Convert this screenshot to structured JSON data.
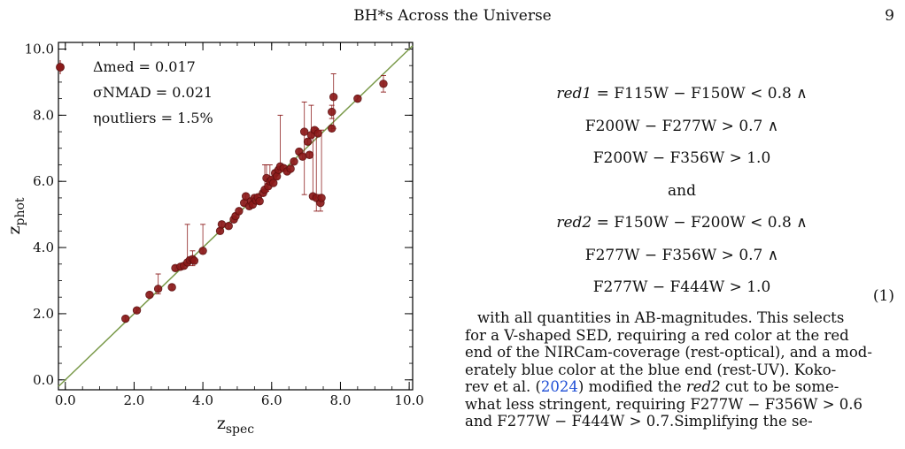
{
  "header": {
    "title": "BH*s Across the Universe",
    "page_number": "9"
  },
  "figure": {
    "legend": {
      "delta": "Δmed = 0.017",
      "sigma": "σNMAD = 0.021",
      "eta": "ηoutliers = 1.5%"
    },
    "colors": {
      "points": "#8b1a1a",
      "line": "#7a9a4a"
    }
  },
  "chart_data": {
    "type": "scatter",
    "xlabel": "zspec",
    "ylabel": "zphot",
    "xlim": [
      -0.2,
      10.1
    ],
    "ylim": [
      -0.3,
      10.2
    ],
    "xticks": [
      "0.0",
      "2.0",
      "4.0",
      "6.0",
      "8.0",
      "10.0"
    ],
    "yticks": [
      "0.0",
      "2.0",
      "4.0",
      "6.0",
      "8.0",
      "10.0"
    ],
    "reference_line": "one-to-one",
    "points": [
      {
        "x": 1.75,
        "y": 1.85,
        "lo": 1.78,
        "hi": 1.92
      },
      {
        "x": 2.08,
        "y": 2.1,
        "lo": 2.03,
        "hi": 2.17
      },
      {
        "x": 2.45,
        "y": 2.57,
        "lo": 2.5,
        "hi": 2.64
      },
      {
        "x": 2.7,
        "y": 2.75,
        "lo": 2.6,
        "hi": 3.2
      },
      {
        "x": 3.1,
        "y": 2.8,
        "lo": 2.72,
        "hi": 2.88
      },
      {
        "x": 3.2,
        "y": 3.38,
        "lo": 3.3,
        "hi": 3.46
      },
      {
        "x": 3.35,
        "y": 3.42,
        "lo": 3.34,
        "hi": 3.5
      },
      {
        "x": 3.45,
        "y": 3.45,
        "lo": 3.37,
        "hi": 3.53
      },
      {
        "x": 3.55,
        "y": 3.55,
        "lo": 3.47,
        "hi": 4.7
      },
      {
        "x": 3.62,
        "y": 3.62,
        "lo": 3.54,
        "hi": 3.7
      },
      {
        "x": 3.7,
        "y": 3.65,
        "lo": 3.45,
        "hi": 3.9
      },
      {
        "x": 3.75,
        "y": 3.6,
        "lo": 3.52,
        "hi": 3.68
      },
      {
        "x": 4.0,
        "y": 3.9,
        "lo": 3.82,
        "hi": 4.7
      },
      {
        "x": 4.5,
        "y": 4.5,
        "lo": 4.42,
        "hi": 4.58
      },
      {
        "x": 4.55,
        "y": 4.7,
        "lo": 4.62,
        "hi": 4.78
      },
      {
        "x": 4.75,
        "y": 4.65,
        "lo": 4.57,
        "hi": 4.73
      },
      {
        "x": 4.9,
        "y": 4.85,
        "lo": 4.77,
        "hi": 4.93
      },
      {
        "x": 4.95,
        "y": 4.95,
        "lo": 4.87,
        "hi": 5.03
      },
      {
        "x": 5.05,
        "y": 5.1,
        "lo": 5.02,
        "hi": 5.18
      },
      {
        "x": 5.2,
        "y": 5.35,
        "lo": 5.27,
        "hi": 5.43
      },
      {
        "x": 5.25,
        "y": 5.55,
        "lo": 5.47,
        "hi": 5.63
      },
      {
        "x": 5.35,
        "y": 5.25,
        "lo": 5.17,
        "hi": 5.33
      },
      {
        "x": 5.4,
        "y": 5.4,
        "lo": 5.32,
        "hi": 5.48
      },
      {
        "x": 5.45,
        "y": 5.3,
        "lo": 5.22,
        "hi": 5.38
      },
      {
        "x": 5.5,
        "y": 5.5,
        "lo": 5.42,
        "hi": 5.58
      },
      {
        "x": 5.55,
        "y": 5.42,
        "lo": 5.34,
        "hi": 5.5
      },
      {
        "x": 5.6,
        "y": 5.52,
        "lo": 5.44,
        "hi": 5.6
      },
      {
        "x": 5.65,
        "y": 5.4,
        "lo": 5.32,
        "hi": 5.48
      },
      {
        "x": 5.75,
        "y": 5.65,
        "lo": 5.57,
        "hi": 5.73
      },
      {
        "x": 5.8,
        "y": 5.75,
        "lo": 5.67,
        "hi": 6.5
      },
      {
        "x": 5.85,
        "y": 6.1,
        "lo": 5.7,
        "hi": 6.5
      },
      {
        "x": 5.9,
        "y": 5.85,
        "lo": 5.77,
        "hi": 5.93
      },
      {
        "x": 5.95,
        "y": 6.0,
        "lo": 5.92,
        "hi": 6.5
      },
      {
        "x": 6.0,
        "y": 6.05,
        "lo": 5.97,
        "hi": 6.13
      },
      {
        "x": 6.05,
        "y": 5.95,
        "lo": 5.87,
        "hi": 6.03
      },
      {
        "x": 6.1,
        "y": 6.25,
        "lo": 6.17,
        "hi": 6.33
      },
      {
        "x": 6.15,
        "y": 6.15,
        "lo": 6.07,
        "hi": 6.23
      },
      {
        "x": 6.2,
        "y": 6.35,
        "lo": 6.27,
        "hi": 6.43
      },
      {
        "x": 6.25,
        "y": 6.45,
        "lo": 6.37,
        "hi": 8.0
      },
      {
        "x": 6.35,
        "y": 6.4,
        "lo": 6.32,
        "hi": 6.48
      },
      {
        "x": 6.45,
        "y": 6.3,
        "lo": 6.22,
        "hi": 6.38
      },
      {
        "x": 6.55,
        "y": 6.38,
        "lo": 6.3,
        "hi": 6.46
      },
      {
        "x": 6.65,
        "y": 6.6,
        "lo": 6.52,
        "hi": 6.68
      },
      {
        "x": 6.8,
        "y": 6.9,
        "lo": 6.82,
        "hi": 6.98
      },
      {
        "x": 6.9,
        "y": 6.75,
        "lo": 6.67,
        "hi": 6.83
      },
      {
        "x": 6.95,
        "y": 7.5,
        "lo": 5.6,
        "hi": 8.4
      },
      {
        "x": 7.05,
        "y": 7.2,
        "lo": 7.12,
        "hi": 7.28
      },
      {
        "x": 7.1,
        "y": 6.8,
        "lo": 6.72,
        "hi": 6.88
      },
      {
        "x": 7.15,
        "y": 7.4,
        "lo": 7.32,
        "hi": 8.3
      },
      {
        "x": 7.2,
        "y": 5.55,
        "lo": 5.47,
        "hi": 7.55
      },
      {
        "x": 7.25,
        "y": 7.55,
        "lo": 7.47,
        "hi": 7.63
      },
      {
        "x": 7.3,
        "y": 5.5,
        "lo": 5.1,
        "hi": 7.6
      },
      {
        "x": 7.35,
        "y": 7.45,
        "lo": 7.37,
        "hi": 7.53
      },
      {
        "x": 7.42,
        "y": 5.35,
        "lo": 5.1,
        "hi": 5.6
      },
      {
        "x": 7.45,
        "y": 5.5,
        "lo": 5.42,
        "hi": 7.55
      },
      {
        "x": 7.75,
        "y": 7.6,
        "lo": 7.52,
        "hi": 7.68
      },
      {
        "x": 7.75,
        "y": 8.1,
        "lo": 7.9,
        "hi": 8.3
      },
      {
        "x": 7.8,
        "y": 8.55,
        "lo": 7.6,
        "hi": 9.25
      },
      {
        "x": 8.5,
        "y": 8.5,
        "lo": 8.42,
        "hi": 8.58
      },
      {
        "x": 9.25,
        "y": 8.95,
        "lo": 8.7,
        "hi": 9.2
      }
    ]
  },
  "equations": {
    "red1_name": "red1",
    "red1_line1": " = F115W − F150W < 0.8 ∧",
    "red1_line2": "F200W − F277W > 0.7 ∧",
    "red1_line3": "F200W − F356W > 1.0",
    "and": "and",
    "red2_name": "red2",
    "red2_line1": " = F150W − F200W < 0.8 ∧",
    "red2_line2": "F277W − F356W > 0.7 ∧",
    "red2_line3": "F277W − F444W > 1.0",
    "number": "(1)"
  },
  "body_text": {
    "l1": "with all quantities in AB-magnitudes. This selects",
    "l2": "for a V-shaped SED, requiring a red color at the red",
    "l3": "end of the NIRCam-coverage (rest-optical), and a mod-",
    "l4": "erately blue color at the blue end (rest-UV). Koko-",
    "l5a": "rev et al. (",
    "l5_cite": "2024",
    "l5b": ") modified the ",
    "l5_em": "red2",
    "l5c": " cut to be some-",
    "l6": "what less stringent, requiring F277W − F356W > 0.6",
    "l7a": "and F277W − F444W > 0.7.",
    "l7b": "Simplifying the se-"
  }
}
